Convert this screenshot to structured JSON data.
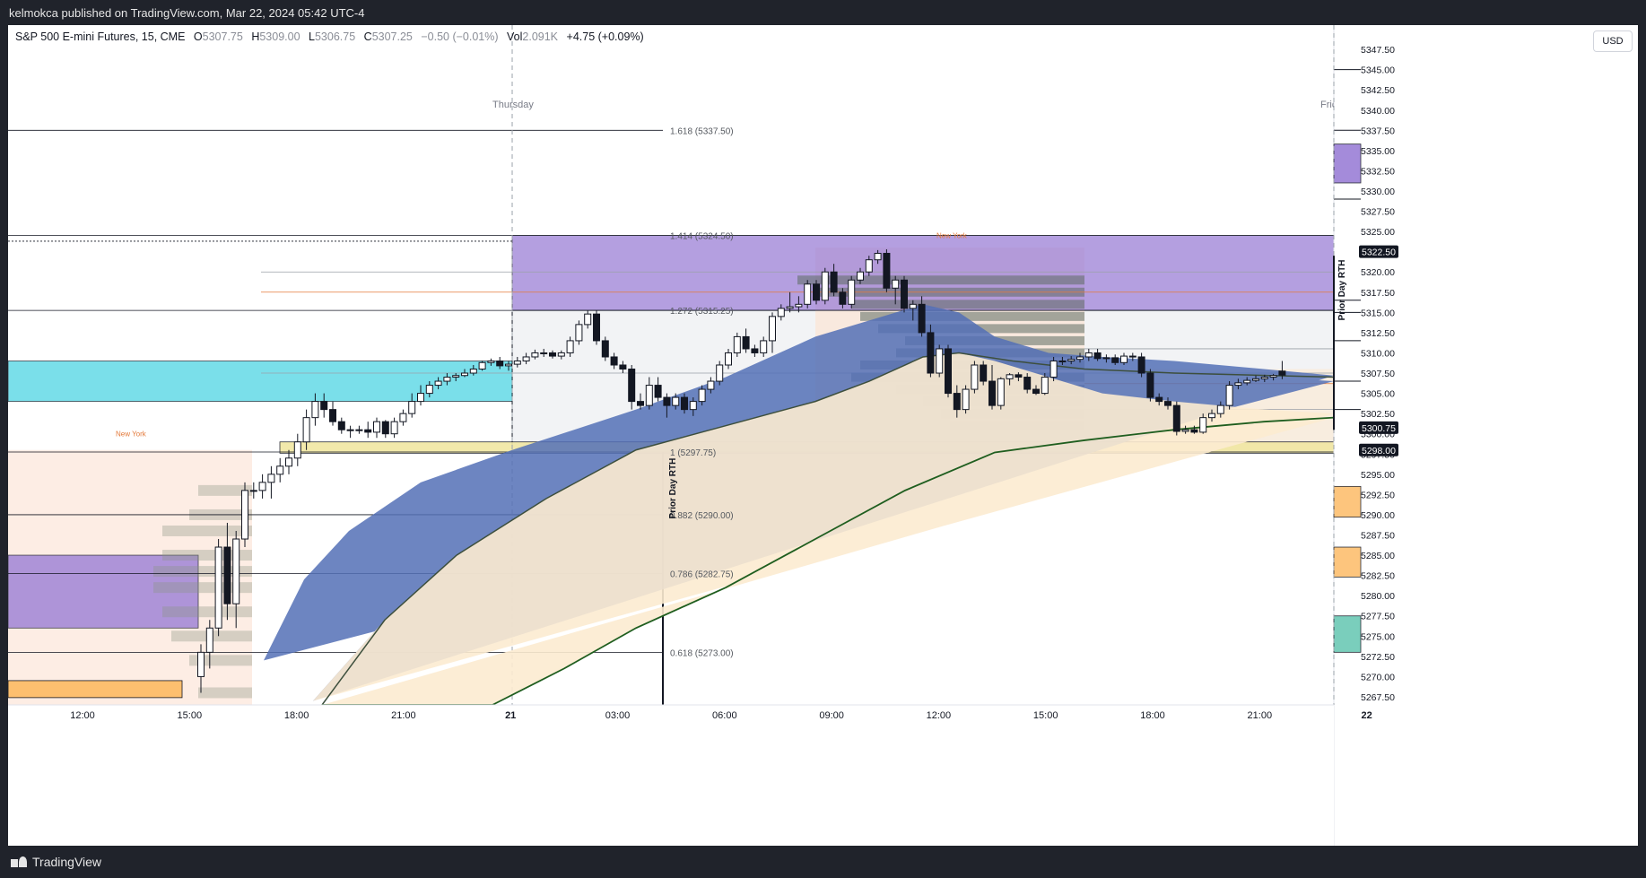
{
  "header": {
    "publish_text": "kelmokca published on TradingView.com, Mar 22, 2024 05:42 UTC-4"
  },
  "legend": {
    "symbol": "S&P 500 E-mini Futures, 15, CME",
    "o_label": "O",
    "o": "5307.75",
    "h_label": "H",
    "h": "5309.00",
    "l_label": "L",
    "l": "5306.75",
    "c_label": "C",
    "c": "5307.25",
    "chg": "−0.50 (−0.01%)",
    "vol_label": "Vol",
    "vol": "2.091K",
    "extra": "+4.75 (+0.09%)"
  },
  "currency": "USD",
  "footer": {
    "brand": "TradingView"
  },
  "colors": {
    "up": "#ffffff",
    "down": "#131722",
    "blue_band": "#5470b6",
    "tan_band": "#fcebd0",
    "green_ma": "#1f5e1f",
    "purple_zone": "#9b7fd6",
    "cyan_zone": "#5ad8e6",
    "yellow_zone": "#f1e7a3",
    "orange_zone": "#fdbf6f",
    "teal_zone": "#6cc9b5"
  },
  "chart_data": {
    "type": "candlestick",
    "symbol": "S&P 500 E-mini Futures",
    "interval": "15",
    "ylim": [
      5266.5,
      5350.5
    ],
    "y_ticks": [
      "5347.50",
      "5345.00",
      "5342.50",
      "5340.00",
      "5337.50",
      "5335.00",
      "5332.50",
      "5330.00",
      "5327.50",
      "5325.00",
      "5322.50",
      "5320.00",
      "5317.50",
      "5315.00",
      "5312.50",
      "5310.00",
      "5307.50",
      "5305.00",
      "5302.50",
      "5300.00",
      "5297.50",
      "5295.00",
      "5292.50",
      "5290.00",
      "5287.50",
      "5285.00",
      "5282.50",
      "5280.00",
      "5277.50",
      "5275.00",
      "5272.50",
      "5270.00",
      "5267.50"
    ],
    "x_ticks": [
      "12:00",
      "15:00",
      "18:00",
      "21:00",
      "21",
      "03:00",
      "06:00",
      "09:00",
      "12:00",
      "15:00",
      "18:00",
      "21:00",
      "22"
    ],
    "day_labels": [
      "Thursday",
      "Friday"
    ],
    "price_tags": [
      {
        "value": 5322.5,
        "label": "5322.50"
      },
      {
        "value": 5300.75,
        "label": "5300.75"
      },
      {
        "value": 5298.0,
        "label": "5298.00"
      }
    ],
    "fib_levels": [
      {
        "ratio": "1.618",
        "price": 5337.5,
        "label": "1.618 (5337.50)"
      },
      {
        "ratio": "1.414",
        "price": 5324.5,
        "label": "1.414 (5324.50)"
      },
      {
        "ratio": "1.272",
        "price": 5315.25,
        "label": "1.272 (5315.25)"
      },
      {
        "ratio": "1",
        "price": 5297.75,
        "label": "1 (5297.75)"
      },
      {
        "ratio": "0.882",
        "price": 5290.0,
        "label": "0.882 (5290.00)"
      },
      {
        "ratio": "0.786",
        "price": 5282.75,
        "label": "0.786 (5282.75)"
      },
      {
        "ratio": "0.618",
        "price": 5273.0,
        "label": "0.618 (5273.00)"
      }
    ],
    "annotations": [
      "New York",
      "New York",
      "Prior Day RTH",
      "Prior Day RTH"
    ],
    "candles": [
      {
        "o": 5270,
        "h": 5274,
        "l": 5268,
        "c": 5273
      },
      {
        "o": 5273,
        "h": 5277,
        "l": 5271,
        "c": 5276
      },
      {
        "o": 5276,
        "h": 5287,
        "l": 5275,
        "c": 5286
      },
      {
        "o": 5286,
        "h": 5289,
        "l": 5277,
        "c": 5279
      },
      {
        "o": 5279,
        "h": 5288,
        "l": 5276,
        "c": 5287
      },
      {
        "o": 5287,
        "h": 5294,
        "l": 5286,
        "c": 5293
      },
      {
        "o": 5293,
        "h": 5294,
        "l": 5292,
        "c": 5293
      },
      {
        "o": 5293,
        "h": 5295,
        "l": 5292,
        "c": 5294
      },
      {
        "o": 5294,
        "h": 5296,
        "l": 5292,
        "c": 5295
      },
      {
        "o": 5295,
        "h": 5297,
        "l": 5294,
        "c": 5296
      },
      {
        "o": 5296,
        "h": 5298,
        "l": 5295,
        "c": 5297
      },
      {
        "o": 5297,
        "h": 5300,
        "l": 5296,
        "c": 5299
      },
      {
        "o": 5299,
        "h": 5303,
        "l": 5298,
        "c": 5302
      },
      {
        "o": 5302,
        "h": 5305,
        "l": 5301,
        "c": 5304
      },
      {
        "o": 5304,
        "h": 5305,
        "l": 5302,
        "c": 5303
      },
      {
        "o": 5303,
        "h": 5304,
        "l": 5301,
        "c": 5301.5
      },
      {
        "o": 5301.5,
        "h": 5302,
        "l": 5300,
        "c": 5300.5
      },
      {
        "o": 5300.5,
        "h": 5301,
        "l": 5299.5,
        "c": 5300.5
      },
      {
        "o": 5300.5,
        "h": 5301,
        "l": 5300,
        "c": 5300.5
      },
      {
        "o": 5300.5,
        "h": 5301.5,
        "l": 5299.5,
        "c": 5300.2
      },
      {
        "o": 5300.2,
        "h": 5302,
        "l": 5299.5,
        "c": 5301.5
      },
      {
        "o": 5301.5,
        "h": 5301.7,
        "l": 5299.5,
        "c": 5300
      },
      {
        "o": 5300,
        "h": 5302,
        "l": 5299.5,
        "c": 5301.5
      },
      {
        "o": 5301.5,
        "h": 5303,
        "l": 5301,
        "c": 5302.5
      },
      {
        "o": 5302.5,
        "h": 5305,
        "l": 5302,
        "c": 5304
      },
      {
        "o": 5304,
        "h": 5306,
        "l": 5303.5,
        "c": 5305
      },
      {
        "o": 5305,
        "h": 5306.5,
        "l": 5304.5,
        "c": 5306
      },
      {
        "o": 5306,
        "h": 5307,
        "l": 5305.5,
        "c": 5306.5
      },
      {
        "o": 5306.5,
        "h": 5307.5,
        "l": 5306,
        "c": 5307
      },
      {
        "o": 5307,
        "h": 5307.5,
        "l": 5306.5,
        "c": 5307.2
      },
      {
        "o": 5307.2,
        "h": 5308,
        "l": 5307,
        "c": 5307.5
      },
      {
        "o": 5307.5,
        "h": 5308.5,
        "l": 5307.2,
        "c": 5308
      },
      {
        "o": 5308,
        "h": 5309,
        "l": 5307.8,
        "c": 5308.8
      },
      {
        "o": 5308.8,
        "h": 5309.3,
        "l": 5308.4,
        "c": 5309
      },
      {
        "o": 5309,
        "h": 5309.5,
        "l": 5308,
        "c": 5308.4
      },
      {
        "o": 5308.4,
        "h": 5309,
        "l": 5307.8,
        "c": 5308.6
      },
      {
        "o": 5308.6,
        "h": 5309.5,
        "l": 5308.2,
        "c": 5309
      },
      {
        "o": 5309,
        "h": 5310,
        "l": 5308.6,
        "c": 5309.5
      },
      {
        "o": 5309.5,
        "h": 5310.4,
        "l": 5309.2,
        "c": 5310
      },
      {
        "o": 5310,
        "h": 5310.5,
        "l": 5309.5,
        "c": 5310
      },
      {
        "o": 5310,
        "h": 5310.3,
        "l": 5309.3,
        "c": 5309.6
      },
      {
        "o": 5309.6,
        "h": 5310.3,
        "l": 5309.2,
        "c": 5310
      },
      {
        "o": 5310,
        "h": 5312,
        "l": 5309.5,
        "c": 5311.5
      },
      {
        "o": 5311.5,
        "h": 5314,
        "l": 5311,
        "c": 5313.5
      },
      {
        "o": 5313.5,
        "h": 5315.2,
        "l": 5313,
        "c": 5314.8
      },
      {
        "o": 5314.8,
        "h": 5315.2,
        "l": 5311,
        "c": 5311.5
      },
      {
        "o": 5311.5,
        "h": 5312,
        "l": 5309,
        "c": 5309.5
      },
      {
        "o": 5309.5,
        "h": 5310,
        "l": 5308,
        "c": 5308.5
      },
      {
        "o": 5308.5,
        "h": 5309,
        "l": 5307.5,
        "c": 5308
      },
      {
        "o": 5308,
        "h": 5308.5,
        "l": 5303,
        "c": 5304
      },
      {
        "o": 5304,
        "h": 5305,
        "l": 5303,
        "c": 5303.5
      },
      {
        "o": 5303.5,
        "h": 5307,
        "l": 5303,
        "c": 5306
      },
      {
        "o": 5306,
        "h": 5307,
        "l": 5304,
        "c": 5304.5
      },
      {
        "o": 5304.5,
        "h": 5305,
        "l": 5302,
        "c": 5303.5
      },
      {
        "o": 5303.5,
        "h": 5305,
        "l": 5303,
        "c": 5304.5
      },
      {
        "o": 5304.5,
        "h": 5305,
        "l": 5302.5,
        "c": 5303
      },
      {
        "o": 5303,
        "h": 5304.5,
        "l": 5302.2,
        "c": 5304
      },
      {
        "o": 5304,
        "h": 5306,
        "l": 5303.5,
        "c": 5305.5
      },
      {
        "o": 5305.5,
        "h": 5307,
        "l": 5305,
        "c": 5306.5
      },
      {
        "o": 5306.5,
        "h": 5309,
        "l": 5306,
        "c": 5308.5
      },
      {
        "o": 5308.5,
        "h": 5310.5,
        "l": 5308,
        "c": 5310
      },
      {
        "o": 5310,
        "h": 5312.5,
        "l": 5309.5,
        "c": 5312
      },
      {
        "o": 5312,
        "h": 5313,
        "l": 5310,
        "c": 5310.5
      },
      {
        "o": 5310.5,
        "h": 5311,
        "l": 5309.5,
        "c": 5310
      },
      {
        "o": 5310,
        "h": 5312,
        "l": 5309.5,
        "c": 5311.5
      },
      {
        "o": 5311.5,
        "h": 5315,
        "l": 5310,
        "c": 5314.5
      },
      {
        "o": 5314.5,
        "h": 5316,
        "l": 5314,
        "c": 5315.5
      },
      {
        "o": 5315.5,
        "h": 5317.5,
        "l": 5315,
        "c": 5315.7
      },
      {
        "o": 5315.7,
        "h": 5317,
        "l": 5315,
        "c": 5316
      },
      {
        "o": 5316,
        "h": 5319,
        "l": 5315.5,
        "c": 5318.5
      },
      {
        "o": 5318.5,
        "h": 5319,
        "l": 5316,
        "c": 5316.5
      },
      {
        "o": 5316.5,
        "h": 5320.5,
        "l": 5316,
        "c": 5320
      },
      {
        "o": 5320,
        "h": 5321,
        "l": 5317,
        "c": 5317.5
      },
      {
        "o": 5317.5,
        "h": 5318,
        "l": 5315.5,
        "c": 5316
      },
      {
        "o": 5316,
        "h": 5319.5,
        "l": 5315.5,
        "c": 5319
      },
      {
        "o": 5319,
        "h": 5320.5,
        "l": 5318.5,
        "c": 5320
      },
      {
        "o": 5320,
        "h": 5322,
        "l": 5319.5,
        "c": 5321.5
      },
      {
        "o": 5321.5,
        "h": 5322.7,
        "l": 5321,
        "c": 5322.3
      },
      {
        "o": 5322.3,
        "h": 5322.8,
        "l": 5317.5,
        "c": 5318
      },
      {
        "o": 5318,
        "h": 5319.5,
        "l": 5316,
        "c": 5319
      },
      {
        "o": 5319,
        "h": 5319.5,
        "l": 5315,
        "c": 5315.5
      },
      {
        "o": 5315.5,
        "h": 5316.5,
        "l": 5314,
        "c": 5316
      },
      {
        "o": 5316,
        "h": 5317,
        "l": 5312,
        "c": 5312.5
      },
      {
        "o": 5312.5,
        "h": 5313.5,
        "l": 5307,
        "c": 5307.5
      },
      {
        "o": 5307.5,
        "h": 5311,
        "l": 5307,
        "c": 5310.5
      },
      {
        "o": 5310.5,
        "h": 5311,
        "l": 5304.5,
        "c": 5305
      },
      {
        "o": 5305,
        "h": 5306,
        "l": 5302,
        "c": 5303
      },
      {
        "o": 5303,
        "h": 5306,
        "l": 5302.5,
        "c": 5305.5
      },
      {
        "o": 5305.5,
        "h": 5309,
        "l": 5305,
        "c": 5308.5
      },
      {
        "o": 5308.5,
        "h": 5309,
        "l": 5306,
        "c": 5306.5
      },
      {
        "o": 5306.5,
        "h": 5308.5,
        "l": 5303,
        "c": 5303.5
      },
      {
        "o": 5303.5,
        "h": 5307,
        "l": 5303,
        "c": 5306.8
      },
      {
        "o": 5306.8,
        "h": 5307.5,
        "l": 5306,
        "c": 5307.3
      },
      {
        "o": 5307.3,
        "h": 5307.6,
        "l": 5306.5,
        "c": 5307
      },
      {
        "o": 5307,
        "h": 5307.5,
        "l": 5305,
        "c": 5305.5
      },
      {
        "o": 5305.5,
        "h": 5306,
        "l": 5304.8,
        "c": 5305
      },
      {
        "o": 5305,
        "h": 5307.5,
        "l": 5304.8,
        "c": 5307
      },
      {
        "o": 5307,
        "h": 5309.5,
        "l": 5306.5,
        "c": 5309
      },
      {
        "o": 5309,
        "h": 5309.5,
        "l": 5308.5,
        "c": 5309
      },
      {
        "o": 5309,
        "h": 5309.6,
        "l": 5308.6,
        "c": 5309.2
      },
      {
        "o": 5309.2,
        "h": 5310,
        "l": 5308.8,
        "c": 5309.5
      },
      {
        "o": 5309.5,
        "h": 5310.5,
        "l": 5309,
        "c": 5310
      },
      {
        "o": 5310,
        "h": 5310.5,
        "l": 5309,
        "c": 5309.3
      },
      {
        "o": 5309.3,
        "h": 5309.8,
        "l": 5308.8,
        "c": 5309.4
      },
      {
        "o": 5309.4,
        "h": 5309.8,
        "l": 5308.5,
        "c": 5308.8
      },
      {
        "o": 5308.8,
        "h": 5310,
        "l": 5308.5,
        "c": 5309.6
      },
      {
        "o": 5309.6,
        "h": 5310,
        "l": 5309,
        "c": 5309.5
      },
      {
        "o": 5309.5,
        "h": 5310,
        "l": 5307,
        "c": 5307.5
      },
      {
        "o": 5307.5,
        "h": 5308,
        "l": 5304,
        "c": 5304.5
      },
      {
        "o": 5304.5,
        "h": 5305,
        "l": 5303.5,
        "c": 5304
      },
      {
        "o": 5304,
        "h": 5304.5,
        "l": 5303,
        "c": 5303.5
      },
      {
        "o": 5303.5,
        "h": 5304,
        "l": 5299.8,
        "c": 5300.3
      },
      {
        "o": 5300.3,
        "h": 5301,
        "l": 5300,
        "c": 5300.5
      },
      {
        "o": 5300.5,
        "h": 5301,
        "l": 5300,
        "c": 5300.2
      },
      {
        "o": 5300.2,
        "h": 5302.5,
        "l": 5300,
        "c": 5302
      },
      {
        "o": 5302,
        "h": 5303,
        "l": 5301.5,
        "c": 5302.5
      },
      {
        "o": 5302.5,
        "h": 5304,
        "l": 5302,
        "c": 5303.5
      },
      {
        "o": 5303.5,
        "h": 5306.5,
        "l": 5303,
        "c": 5306
      },
      {
        "o": 5306,
        "h": 5306.8,
        "l": 5305.5,
        "c": 5306.3
      },
      {
        "o": 5306.3,
        "h": 5307,
        "l": 5306,
        "c": 5306.6
      },
      {
        "o": 5306.6,
        "h": 5307.2,
        "l": 5306.4,
        "c": 5306.8
      },
      {
        "o": 5306.8,
        "h": 5307.3,
        "l": 5306.4,
        "c": 5307
      },
      {
        "o": 5307,
        "h": 5307.4,
        "l": 5306.6,
        "c": 5307.2
      },
      {
        "o": 5307.75,
        "h": 5309,
        "l": 5306.75,
        "c": 5307.25
      }
    ]
  }
}
